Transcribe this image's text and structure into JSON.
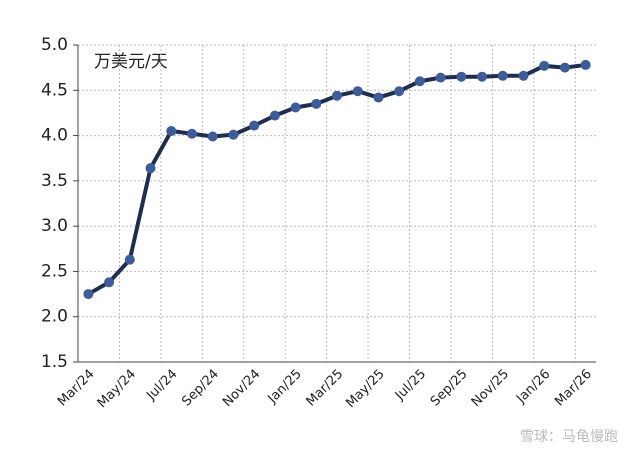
{
  "chart_data": {
    "type": "line",
    "annotation": "万美元/天",
    "watermark": "雪球：马龟慢跑",
    "categories": [
      "Mar/24",
      null,
      "May/24",
      null,
      "Jul/24",
      null,
      "Sep/24",
      null,
      "Nov/24",
      null,
      "Jan/25",
      null,
      "Mar/25",
      null,
      "May/25",
      null,
      "Jul/25",
      null,
      "Sep/25",
      null,
      "Nov/25",
      null,
      "Jan/26",
      null,
      "Mar/26"
    ],
    "series": [
      {
        "name": null,
        "color": "#1f2d4f",
        "marker_color": "#3d5c99",
        "values": [
          2.25,
          2.38,
          2.63,
          3.64,
          4.05,
          4.02,
          3.99,
          4.01,
          4.11,
          4.22,
          4.31,
          4.35,
          4.44,
          4.49,
          4.42,
          4.49,
          4.6,
          4.64,
          4.65,
          4.65,
          4.66,
          4.66,
          4.77,
          4.75,
          4.78
        ]
      }
    ],
    "ylim": [
      1.5,
      5.0
    ],
    "yticks": [
      1.5,
      {
        "value": 2.0,
        "label": "2.0"
      },
      2.5,
      {
        "value": 3.0,
        "label": "3.0"
      },
      3.5,
      {
        "value": 4.0,
        "label": "4.0"
      },
      4.5,
      {
        "value": 5.0,
        "label": "5.0"
      }
    ],
    "grid": true
  }
}
